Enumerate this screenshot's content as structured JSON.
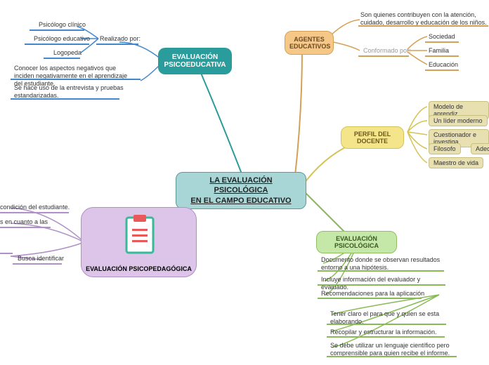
{
  "center": {
    "title": "LA EVALUACIÓN PSICOLÓGICA\nEN EL CAMPO EDUCATIVO"
  },
  "psicoeducativa": {
    "title": "EVALUACIÓN\nPSICOEDUCATIVA",
    "realizado": "Realizado por:",
    "roles": [
      "Psicólogo clínico",
      "Psicólogo educativo",
      "Logopeda"
    ],
    "note1": "Conocer los aspectos negativos que inciden negativamente en el aprendizaje del estudiante.",
    "note2": "Se hace uso de la entrevista y pruebas estandarizadas."
  },
  "agentes": {
    "title": "AGENTES\nEDUCATIVOS",
    "contrib": "Son quienes contribuyen con la atención, cuidado, desarrollo y educación de los niños.",
    "conformado": "Conformado por:",
    "items": [
      "Sociedad",
      "Familia",
      "Educación"
    ]
  },
  "perfil": {
    "title": "PERFIL DEL DOCENTE",
    "items": [
      "Modelo de aprendiz",
      "Un líder moderno",
      "Cuestionador e investiga",
      "Filosofo",
      "Maestro de vida"
    ],
    "extra": "Adecu"
  },
  "psicopedagogica": {
    "title": "EVALUACIÓN PSICOPEDAGÓGICA",
    "frag1": "condición del estudiante.",
    "frag2": "s en cuanto a las",
    "frag3": "Busca identificar"
  },
  "psicologica": {
    "title": "EVALUACIÓN PSICOLÓGICA",
    "t1": "Documento donde se observan resultados entorno a una hipótesis.",
    "t2": "Incluye información del evaluador y evaluado.",
    "t3": "Recomendaciones para la aplicación",
    "t4": "Tener claro el para que y quien se esta elaborando.",
    "t5": "Recopilar y estructurar la información.",
    "t6": "Se debe utilizar un lenguaje científico pero comprensible para quien recibe el informe."
  },
  "colors": {
    "blue": "#4488cc",
    "green": "#88bb55",
    "orange": "#d4a055",
    "yellow": "#d4c255",
    "teal": "#2a9c9c",
    "purple": "#b090c8"
  }
}
